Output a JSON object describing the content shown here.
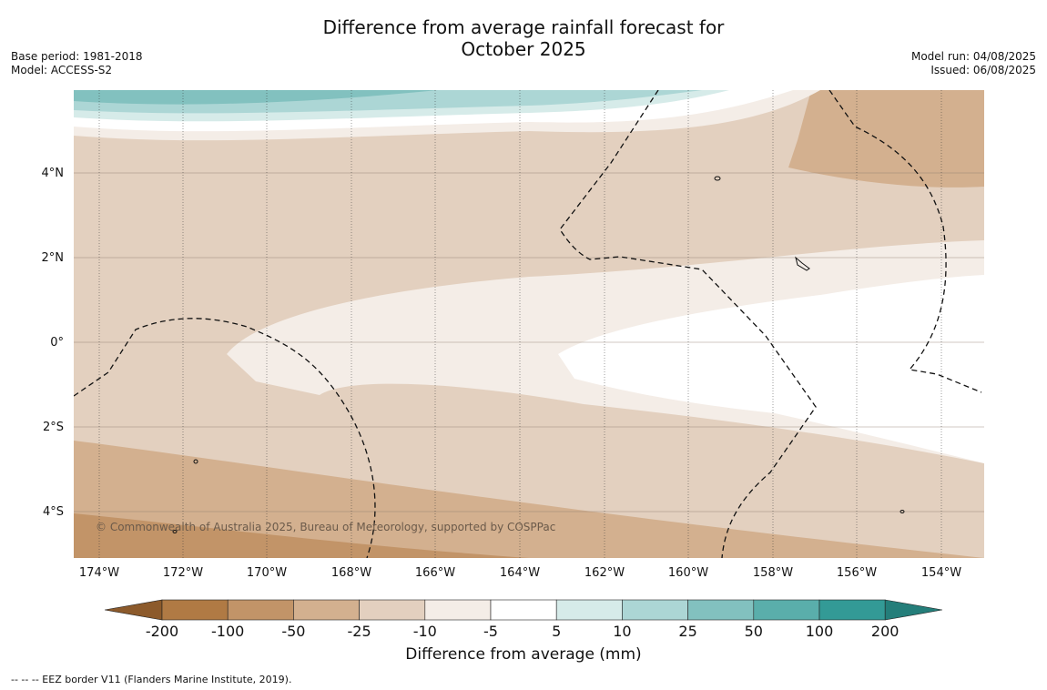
{
  "title_line1": "Difference from average rainfall forecast for",
  "title_line2": "October 2025",
  "meta_left": {
    "base_period": "Base period: 1981-2018",
    "model": "Model: ACCESS-S2"
  },
  "meta_right": {
    "model_run": "Model run: 04/08/2025",
    "issued": "Issued: 06/08/2025"
  },
  "y_axis": [
    "4°N",
    "2°N",
    "0°",
    "2°S",
    "4°S"
  ],
  "x_axis": [
    "174°W",
    "172°W",
    "170°W",
    "168°W",
    "166°W",
    "164°W",
    "162°W",
    "160°W",
    "158°W",
    "156°W",
    "154°W"
  ],
  "copyright": "© Commonwealth of Australia 2025, Bureau of Meteorology, supported by COSPPac",
  "colorbar": {
    "label": "Difference from average (mm)",
    "ticks": [
      "-200",
      "-100",
      "-50",
      "-25",
      "-10",
      "-5",
      "5",
      "10",
      "25",
      "50",
      "100",
      "200"
    ],
    "colors": [
      "#8c5a2b",
      "#b07a44",
      "#c29468",
      "#d3b08f",
      "#e3d0bf",
      "#f4ede7",
      "#ffffff",
      "#d6ebe9",
      "#acd6d5",
      "#82c1bf",
      "#5aaeab",
      "#339a96",
      "#247e7a"
    ]
  },
  "legend_note": "--  --  -- EEZ border V11 (Flanders Marine Institute, 2019)."
}
